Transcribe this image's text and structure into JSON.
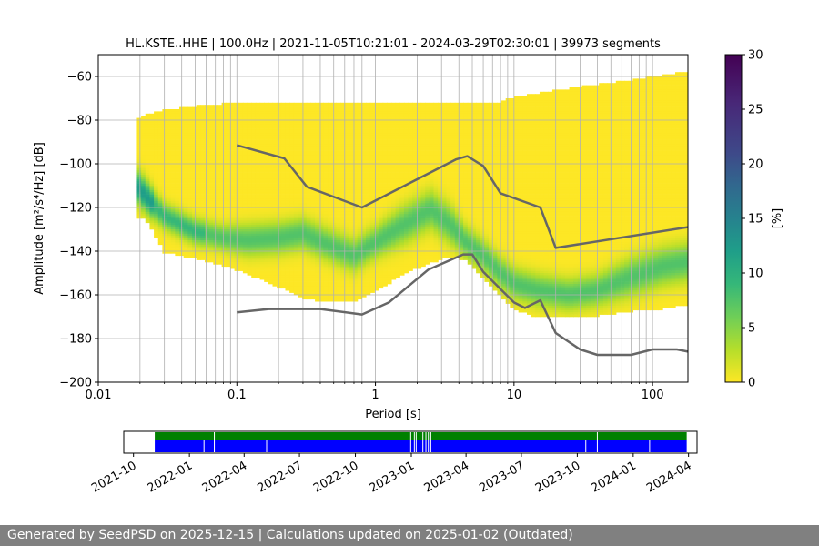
{
  "chart_data": [
    {
      "type": "heatmap",
      "title": "HL.KSTE..HHE | 100.0Hz | 2021-11-05T10:21:01 - 2024-03-29T02:30:01 | 39973 segments",
      "xlabel": "Period [s]",
      "ylabel": "Amplitude [m²/s⁴/Hz] [dB]",
      "x_scale": "log",
      "xlim": [
        0.01,
        180
      ],
      "ylim": [
        -200,
        -50
      ],
      "x_ticks": [
        {
          "value": 0.01,
          "label": "0.01"
        },
        {
          "value": 0.1,
          "label": "0.1"
        },
        {
          "value": 1,
          "label": "1"
        },
        {
          "value": 10,
          "label": "10"
        },
        {
          "value": 100,
          "label": "100"
        }
      ],
      "y_ticks": [
        -60,
        -80,
        -100,
        -120,
        -140,
        -160,
        -180,
        -200
      ],
      "y_tick_labels": [
        "−60",
        "−80",
        "−100",
        "−120",
        "−140",
        "−160",
        "−180",
        "−200"
      ],
      "grid": true,
      "density_band": {
        "period": [
          0.019,
          0.022,
          0.03,
          0.05,
          0.08,
          0.12,
          0.2,
          0.3,
          0.45,
          0.7,
          1.0,
          1.6,
          2.5,
          3.5,
          4.5,
          6,
          8,
          10,
          15,
          25,
          40,
          70,
          120,
          180
        ],
        "mode_db": [
          -110,
          -115,
          -124,
          -131,
          -134,
          -135,
          -134,
          -132,
          -137,
          -142,
          -136,
          -128,
          -121,
          -128,
          -136,
          -142,
          -150,
          -155,
          -158,
          -160,
          -158,
          -152,
          -147,
          -145
        ],
        "spread_db": [
          5,
          5,
          4,
          4,
          4,
          5,
          5,
          5,
          5,
          5,
          5,
          6,
          6,
          6,
          5,
          5,
          5,
          5,
          5,
          5,
          5,
          6,
          6,
          6
        ],
        "upper_db": [
          -80,
          -78,
          -76,
          -74,
          -73,
          -72,
          -72,
          -72,
          -72,
          -72,
          -72,
          -72,
          -72,
          -72,
          -72,
          -72,
          -72,
          -70,
          -68,
          -66,
          -64,
          -62,
          -60,
          -58
        ],
        "lower_db": [
          -124,
          -125,
          -140,
          -143,
          -146,
          -150,
          -156,
          -161,
          -163,
          -163,
          -158,
          -150,
          -145,
          -142,
          -144,
          -152,
          -160,
          -166,
          -170,
          -170,
          -169,
          -167,
          -166,
          -164
        ]
      },
      "colorbar": {
        "label": "[%]",
        "range": [
          0,
          30
        ],
        "ticks": [
          0,
          5,
          10,
          15,
          20,
          25,
          30
        ],
        "colormap": "viridis"
      },
      "series": [
        {
          "name": "",
          "color": "#666666",
          "x": [
            0.1,
            0.22,
            0.32,
            0.8,
            3.8,
            4.6,
            6.0,
            8.0,
            15.5,
            20.0,
            180.0
          ],
          "y": [
            -91.5,
            -97.5,
            -110.5,
            -120.0,
            -98.0,
            -96.5,
            -101.0,
            -113.5,
            -120.0,
            -138.5,
            -129.0
          ]
        },
        {
          "name": "",
          "color": "#666666",
          "x": [
            0.1,
            0.17,
            0.4,
            0.8,
            1.25,
            2.4,
            4.3,
            5.0,
            6.0,
            10.0,
            12.0,
            15.5,
            20.0,
            30.0,
            40.0,
            70.0,
            100.0,
            150.0,
            180.0
          ],
          "y": [
            -168.0,
            -166.5,
            -166.5,
            -169.0,
            -163.5,
            -148.5,
            -141.5,
            -141.5,
            -149.5,
            -163.5,
            -166.0,
            -162.5,
            -177.5,
            -185.0,
            -187.5,
            -187.5,
            -185.0,
            -185.0,
            -186.0
          ]
        }
      ]
    },
    {
      "type": "bar",
      "xlim": [
        "2021-09-15",
        "2024-04-15"
      ],
      "x_ticks": [
        "2021-10",
        "2022-01",
        "2022-04",
        "2022-07",
        "2022-10",
        "2023-01",
        "2023-04",
        "2023-07",
        "2023-10",
        "2024-01",
        "2024-04"
      ],
      "series": [
        {
          "name": "",
          "color": "#008000",
          "intervals": [
            [
              "2021-11-05",
              "2024-03-29"
            ]
          ],
          "gaps": [
            "2022-02-11",
            "2022-12-31",
            "2023-01-06",
            "2023-01-09",
            "2023-01-20",
            "2023-01-25",
            "2023-01-29",
            "2023-02-02",
            "2023-11-03"
          ]
        },
        {
          "name": "",
          "color": "#0000ff",
          "intervals": [
            [
              "2021-11-05",
              "2024-03-29"
            ]
          ],
          "gaps": [
            "2022-01-25",
            "2022-02-11",
            "2022-05-08",
            "2022-12-31",
            "2023-01-06",
            "2023-01-09",
            "2023-01-20",
            "2023-01-25",
            "2023-01-29",
            "2023-02-02",
            "2023-10-15",
            "2023-11-03",
            "2024-01-28"
          ]
        }
      ]
    }
  ],
  "footer": {
    "text": "Generated by SeedPSD on 2025-12-15 | Calculations updated on 2025-01-02 (Outdated)"
  }
}
